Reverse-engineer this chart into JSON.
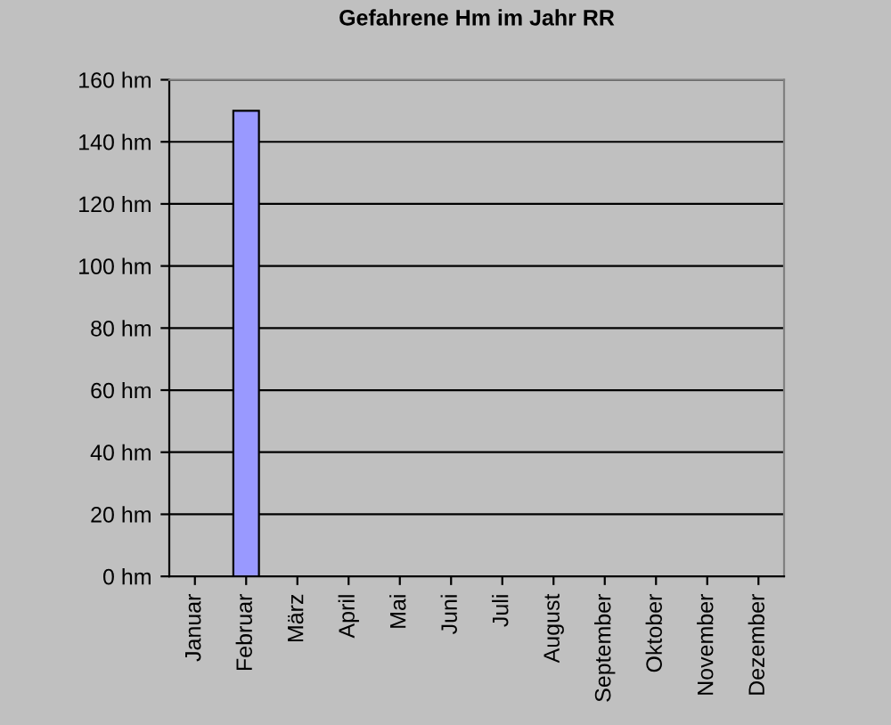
{
  "chart_data": {
    "type": "bar",
    "title": "Gefahrene Hm im Jahr RR",
    "categories": [
      "Januar",
      "Februar",
      "März",
      "April",
      "Mai",
      "Juni",
      "Juli",
      "August",
      "September",
      "Oktober",
      "November",
      "Dezember"
    ],
    "values": [
      0,
      150,
      0,
      0,
      0,
      0,
      0,
      0,
      0,
      0,
      0,
      0
    ],
    "color": "#9999ff",
    "ylim": [
      0,
      160
    ],
    "yticks": [
      {
        "value": 0,
        "label": "0 hm"
      },
      {
        "value": 20,
        "label": "20 hm"
      },
      {
        "value": 40,
        "label": "40 hm"
      },
      {
        "value": 60,
        "label": "60 hm"
      },
      {
        "value": 80,
        "label": "80 hm"
      },
      {
        "value": 100,
        "label": "100 hm"
      },
      {
        "value": 120,
        "label": "120 hm"
      },
      {
        "value": 140,
        "label": "140 hm"
      },
      {
        "value": 160,
        "label": "160 hm"
      }
    ],
    "grid": "y",
    "legend": false
  }
}
